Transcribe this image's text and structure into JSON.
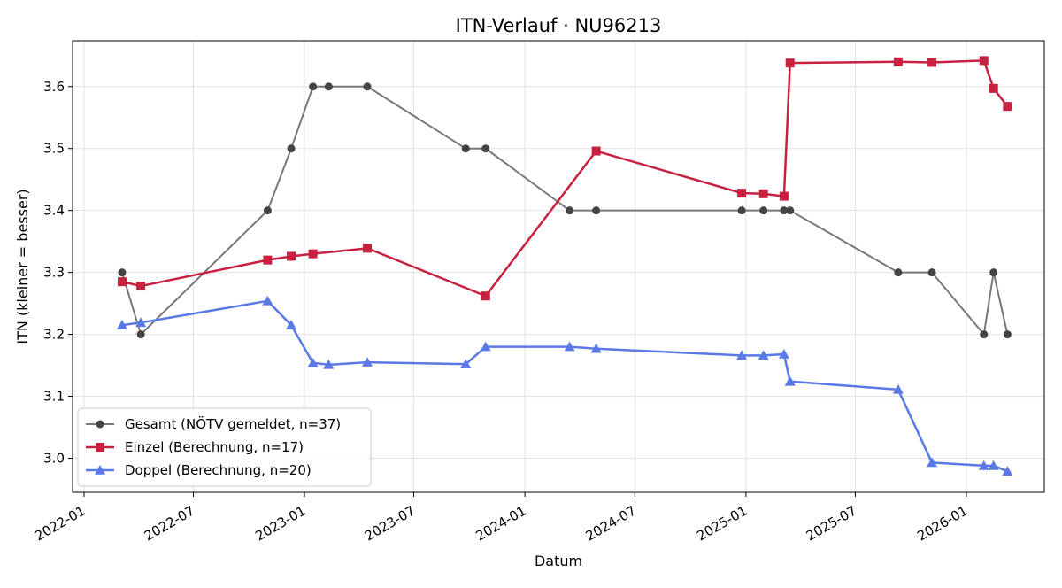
{
  "chart_data": {
    "type": "line",
    "title": "ITN-Verlauf · NU96213",
    "xlabel": "Datum",
    "ylabel": "ITN  (kleiner = besser)",
    "x_axis": {
      "kind": "date",
      "ticks": [
        "2022-01-01",
        "2022-07-01",
        "2023-01-01",
        "2023-07-01",
        "2024-01-01",
        "2024-07-01",
        "2025-01-01",
        "2025-07-01",
        "2026-01-01"
      ],
      "tick_labels": [
        "2022-01",
        "2022-07",
        "2023-01",
        "2023-07",
        "2024-01",
        "2024-07",
        "2025-01",
        "2025-07",
        "2026-01"
      ],
      "range": [
        "2021-12-13",
        "2026-05-10"
      ]
    },
    "y_axis": {
      "ticks": [
        3.0,
        3.1,
        3.2,
        3.3,
        3.4,
        3.5,
        3.6
      ],
      "tick_labels": [
        "3.0",
        "3.1",
        "3.2",
        "3.3",
        "3.4",
        "3.5",
        "3.6"
      ],
      "range": [
        2.945,
        3.674
      ]
    },
    "grid": true,
    "legend_position": "lower-left",
    "series": [
      {
        "name": "Gesamt (NÖTV gemeldet, n=37)",
        "color": "#777777",
        "marker_color": "#444444",
        "marker": "circle",
        "points": [
          [
            "2022-03-05",
            3.3
          ],
          [
            "2022-04-05",
            3.2
          ],
          [
            "2022-11-01",
            3.4
          ],
          [
            "2022-12-10",
            3.5
          ],
          [
            "2023-01-15",
            3.6
          ],
          [
            "2023-02-10",
            3.6
          ],
          [
            "2023-04-15",
            3.6
          ],
          [
            "2023-09-25",
            3.5
          ],
          [
            "2023-10-28",
            3.5
          ],
          [
            "2024-03-15",
            3.4
          ],
          [
            "2024-04-28",
            3.4
          ],
          [
            "2024-12-25",
            3.4
          ],
          [
            "2025-01-30",
            3.4
          ],
          [
            "2025-03-05",
            3.4
          ],
          [
            "2025-03-15",
            3.4
          ],
          [
            "2025-09-10",
            3.3
          ],
          [
            "2025-11-05",
            3.3
          ],
          [
            "2026-01-30",
            3.2
          ],
          [
            "2026-02-15",
            3.3
          ],
          [
            "2026-03-10",
            3.2
          ]
        ]
      },
      {
        "name": "Einzel (Berechnung, n=17)",
        "color": "#c8203f",
        "marker": "square",
        "points": [
          [
            "2022-03-05",
            3.285
          ],
          [
            "2022-04-05",
            3.278
          ],
          [
            "2022-11-01",
            3.32
          ],
          [
            "2022-12-10",
            3.326
          ],
          [
            "2023-01-15",
            3.33
          ],
          [
            "2023-04-15",
            3.339
          ],
          [
            "2023-10-28",
            3.262
          ],
          [
            "2024-04-28",
            3.496
          ],
          [
            "2024-12-25",
            3.428
          ],
          [
            "2025-01-30",
            3.427
          ],
          [
            "2025-03-05",
            3.423
          ],
          [
            "2025-03-15",
            3.638
          ],
          [
            "2025-09-10",
            3.64
          ],
          [
            "2025-11-05",
            3.639
          ],
          [
            "2026-01-30",
            3.642
          ],
          [
            "2026-02-15",
            3.597
          ],
          [
            "2026-03-10",
            3.568
          ]
        ]
      },
      {
        "name": "Doppel (Berechnung, n=20)",
        "color": "#5a78e6",
        "marker": "triangle",
        "points": [
          [
            "2022-03-05",
            3.215
          ],
          [
            "2022-04-05",
            3.219
          ],
          [
            "2022-11-01",
            3.254
          ],
          [
            "2022-12-10",
            3.215
          ],
          [
            "2023-01-15",
            3.154
          ],
          [
            "2023-02-10",
            3.151
          ],
          [
            "2023-04-15",
            3.155
          ],
          [
            "2023-09-25",
            3.152
          ],
          [
            "2023-10-28",
            3.18
          ],
          [
            "2024-03-15",
            3.18
          ],
          [
            "2024-04-28",
            3.177
          ],
          [
            "2024-12-25",
            3.166
          ],
          [
            "2025-01-30",
            3.166
          ],
          [
            "2025-03-05",
            3.168
          ],
          [
            "2025-03-15",
            3.124
          ],
          [
            "2025-09-10",
            3.111
          ],
          [
            "2025-11-05",
            2.993
          ],
          [
            "2026-01-30",
            2.988
          ],
          [
            "2026-02-15",
            2.988
          ],
          [
            "2026-03-10",
            2.979
          ]
        ]
      }
    ]
  }
}
